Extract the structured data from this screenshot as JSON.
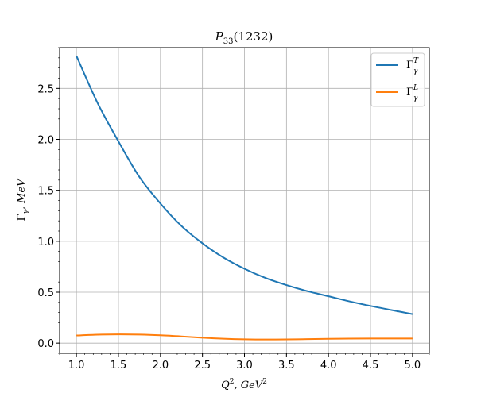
{
  "chart_data": {
    "type": "line",
    "title": "P33(1232)",
    "xlabel": "Q2, GeV2",
    "ylabel": "Γγ, MeV",
    "xlim": [
      0.8,
      5.2
    ],
    "ylim": [
      -0.1,
      2.9
    ],
    "xticks": [
      1.0,
      1.5,
      2.0,
      2.5,
      3.0,
      3.5,
      4.0,
      4.5,
      5.0
    ],
    "yticks": [
      0.0,
      0.5,
      1.0,
      1.5,
      2.0,
      2.5
    ],
    "grid": true,
    "legend_position": "top-right",
    "series": [
      {
        "name": "ΓγT",
        "color": "#1f77b4",
        "x": [
          1.0,
          1.25,
          1.5,
          1.75,
          2.0,
          2.25,
          2.5,
          2.75,
          3.0,
          3.25,
          3.5,
          3.75,
          4.0,
          4.25,
          4.5,
          4.75,
          5.0
        ],
        "y": [
          2.82,
          2.36,
          1.98,
          1.63,
          1.37,
          1.15,
          0.98,
          0.84,
          0.73,
          0.64,
          0.57,
          0.51,
          0.46,
          0.41,
          0.365,
          0.325,
          0.285
        ]
      },
      {
        "name": "ΓγL",
        "color": "#ff7f0e",
        "x": [
          1.0,
          1.25,
          1.5,
          1.75,
          2.0,
          2.25,
          2.5,
          2.75,
          3.0,
          3.25,
          3.5,
          3.75,
          4.0,
          4.25,
          4.5,
          4.75,
          5.0
        ],
        "y": [
          0.075,
          0.083,
          0.086,
          0.084,
          0.077,
          0.066,
          0.053,
          0.043,
          0.037,
          0.035,
          0.036,
          0.039,
          0.042,
          0.044,
          0.045,
          0.045,
          0.045
        ]
      }
    ]
  }
}
